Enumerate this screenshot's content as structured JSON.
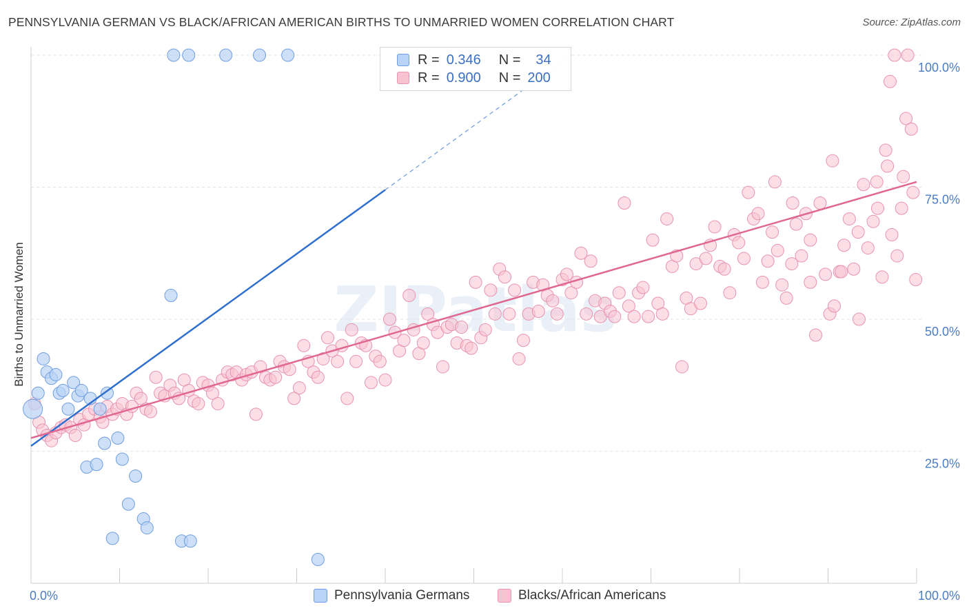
{
  "title": "PENNSYLVANIA GERMAN VS BLACK/AFRICAN AMERICAN BIRTHS TO UNMARRIED WOMEN CORRELATION CHART",
  "source": "Source: ZipAtlas.com",
  "watermark": "ZIPatlas",
  "legend": {
    "rows": [
      {
        "r_label": "R =",
        "r_value": "0.346",
        "n_label": "N =",
        "n_value": "34"
      },
      {
        "r_label": "R =",
        "r_value": "0.900",
        "n_label": "N =",
        "n_value": "200"
      }
    ]
  },
  "bottom_legend": [
    "Pennsylvania Germans",
    "Blacks/African Americans"
  ],
  "chart_data": {
    "type": "scatter",
    "title": "PENNSYLVANIA GERMAN VS BLACK/AFRICAN AMERICAN BIRTHS TO UNMARRIED WOMEN CORRELATION CHART",
    "xlabel": "",
    "ylabel": "Births to Unmarried Women",
    "xlim": [
      0,
      100
    ],
    "ylim": [
      0,
      100
    ],
    "x_tick_labels": [
      "0.0%",
      "100.0%"
    ],
    "y_tick_labels": [
      "25.0%",
      "50.0%",
      "75.0%",
      "100.0%"
    ],
    "y_ticks": [
      25,
      50,
      75,
      100
    ],
    "grid": true,
    "legend_position": "top-center",
    "colors": {
      "blue_fill": "#b8d3f5",
      "blue_stroke": "#6f9ee0",
      "blue_line": "#2f6fcf",
      "pink_fill": "#f7c2d2",
      "pink_stroke": "#e893b0",
      "pink_line": "#e0678f",
      "axis_text": "#4a7cc4",
      "grid": "#e3e3e3"
    },
    "series": [
      {
        "name": "Pennsylvania Germans",
        "r": 0.346,
        "n": 34,
        "trend": {
          "x0": 0,
          "y0": 26,
          "x1": 40,
          "y1": 74.5,
          "dash_to_x": 61,
          "dash_to_y": 100
        },
        "points": [
          [
            0.2,
            33
          ],
          [
            0.8,
            36
          ],
          [
            1.4,
            42.5
          ],
          [
            1.8,
            40
          ],
          [
            2.3,
            38.8
          ],
          [
            2.8,
            39.5
          ],
          [
            3.2,
            36
          ],
          [
            3.6,
            36.5
          ],
          [
            4.2,
            33
          ],
          [
            4.8,
            38
          ],
          [
            5.3,
            35.5
          ],
          [
            5.7,
            36.5
          ],
          [
            6.7,
            35
          ],
          [
            7.8,
            33
          ],
          [
            8.6,
            36
          ],
          [
            8.3,
            26.5
          ],
          [
            9.8,
            27.5
          ],
          [
            10.3,
            23.5
          ],
          [
            6.3,
            22
          ],
          [
            7.4,
            22.5
          ],
          [
            11.8,
            20.3
          ],
          [
            11.0,
            15
          ],
          [
            12.7,
            12.2
          ],
          [
            13.1,
            10.5
          ],
          [
            9.2,
            8.5
          ],
          [
            17.0,
            8
          ],
          [
            18.0,
            8
          ],
          [
            32.4,
            4.5
          ],
          [
            15.8,
            54.5
          ],
          [
            16.1,
            100
          ],
          [
            17.8,
            100
          ],
          [
            22.0,
            100
          ],
          [
            25.8,
            100
          ],
          [
            29.0,
            100
          ]
        ]
      },
      {
        "name": "Blacks/African Americans",
        "r": 0.9,
        "n": 200,
        "trend": {
          "x0": 0,
          "y0": 27.5,
          "x1": 100,
          "y1": 76
        },
        "points": [
          [
            0.4,
            34
          ],
          [
            0.9,
            30.5
          ],
          [
            1.3,
            29
          ],
          [
            1.8,
            28
          ],
          [
            2.3,
            27
          ],
          [
            2.8,
            28.5
          ],
          [
            3.4,
            29.5
          ],
          [
            3.9,
            30
          ],
          [
            4.5,
            29.5
          ],
          [
            5.0,
            28
          ],
          [
            5.5,
            31
          ],
          [
            6.0,
            30
          ],
          [
            6.5,
            32
          ],
          [
            7.2,
            33
          ],
          [
            7.8,
            31.5
          ],
          [
            8.1,
            30.5
          ],
          [
            8.6,
            33.5
          ],
          [
            9.2,
            32
          ],
          [
            9.7,
            33
          ],
          [
            10.3,
            34
          ],
          [
            10.8,
            32
          ],
          [
            11.4,
            33.5
          ],
          [
            11.9,
            36
          ],
          [
            12.4,
            35
          ],
          [
            13.0,
            33
          ],
          [
            13.5,
            32.5
          ],
          [
            14.1,
            39
          ],
          [
            14.6,
            36
          ],
          [
            15.1,
            35.5
          ],
          [
            15.7,
            37.5
          ],
          [
            16.2,
            36
          ],
          [
            16.7,
            35
          ],
          [
            17.3,
            38.5
          ],
          [
            17.8,
            36.5
          ],
          [
            18.4,
            34.5
          ],
          [
            18.9,
            34
          ],
          [
            19.4,
            38
          ],
          [
            20.0,
            37.5
          ],
          [
            20.5,
            36
          ],
          [
            21.1,
            34
          ],
          [
            21.6,
            38.5
          ],
          [
            22.2,
            40
          ],
          [
            22.7,
            39.5
          ],
          [
            23.2,
            40
          ],
          [
            23.8,
            38.5
          ],
          [
            24.3,
            39.5
          ],
          [
            24.9,
            40
          ],
          [
            25.4,
            32
          ],
          [
            25.9,
            41
          ],
          [
            26.5,
            39
          ],
          [
            27.0,
            38.5
          ],
          [
            27.6,
            39
          ],
          [
            28.1,
            42
          ],
          [
            28.6,
            41
          ],
          [
            29.2,
            40.5
          ],
          [
            29.7,
            35
          ],
          [
            30.3,
            37
          ],
          [
            30.8,
            45
          ],
          [
            31.3,
            42
          ],
          [
            31.9,
            40
          ],
          [
            32.4,
            39
          ],
          [
            33.0,
            42.5
          ],
          [
            33.5,
            46.5
          ],
          [
            34.0,
            44
          ],
          [
            34.6,
            42
          ],
          [
            35.1,
            45
          ],
          [
            35.7,
            35
          ],
          [
            36.2,
            48
          ],
          [
            36.7,
            42
          ],
          [
            37.3,
            45.5
          ],
          [
            37.8,
            45
          ],
          [
            38.4,
            38
          ],
          [
            38.9,
            43
          ],
          [
            39.4,
            42
          ],
          [
            40.0,
            38.5
          ],
          [
            40.5,
            50
          ],
          [
            41.1,
            47.5
          ],
          [
            41.6,
            44
          ],
          [
            42.1,
            46
          ],
          [
            42.7,
            54.5
          ],
          [
            43.2,
            48
          ],
          [
            43.8,
            43.5
          ],
          [
            44.3,
            45.5
          ],
          [
            44.8,
            51
          ],
          [
            45.4,
            49
          ],
          [
            45.9,
            47.5
          ],
          [
            46.5,
            41
          ],
          [
            47.0,
            48.5
          ],
          [
            47.5,
            49
          ],
          [
            48.1,
            45.5
          ],
          [
            48.6,
            48.5
          ],
          [
            49.2,
            45
          ],
          [
            49.7,
            44.5
          ],
          [
            50.2,
            57
          ],
          [
            50.8,
            46.5
          ],
          [
            51.3,
            48
          ],
          [
            51.9,
            55.5
          ],
          [
            52.4,
            51
          ],
          [
            52.9,
            59.5
          ],
          [
            53.5,
            58
          ],
          [
            54.0,
            51
          ],
          [
            54.6,
            55.5
          ],
          [
            55.1,
            42.5
          ],
          [
            55.6,
            46
          ],
          [
            56.2,
            51
          ],
          [
            56.7,
            57
          ],
          [
            57.3,
            51.5
          ],
          [
            57.8,
            56.5
          ],
          [
            58.3,
            54.5
          ],
          [
            58.9,
            53.5
          ],
          [
            59.4,
            51
          ],
          [
            60.0,
            57.5
          ],
          [
            60.5,
            58.5
          ],
          [
            61.0,
            55
          ],
          [
            61.6,
            57
          ],
          [
            62.1,
            62.5
          ],
          [
            62.7,
            51
          ],
          [
            63.2,
            61
          ],
          [
            63.7,
            53.5
          ],
          [
            64.3,
            50.5
          ],
          [
            64.8,
            53
          ],
          [
            65.4,
            51.5
          ],
          [
            65.9,
            50.5
          ],
          [
            66.4,
            55
          ],
          [
            67.0,
            72
          ],
          [
            67.5,
            52.5
          ],
          [
            68.1,
            50.5
          ],
          [
            68.6,
            55
          ],
          [
            69.1,
            56
          ],
          [
            69.7,
            50.5
          ],
          [
            70.2,
            65
          ],
          [
            70.8,
            53
          ],
          [
            71.3,
            51
          ],
          [
            71.8,
            69
          ],
          [
            72.4,
            60
          ],
          [
            72.9,
            62
          ],
          [
            73.5,
            41
          ],
          [
            74.0,
            54
          ],
          [
            74.5,
            52
          ],
          [
            75.1,
            60.5
          ],
          [
            75.6,
            53
          ],
          [
            76.2,
            61.5
          ],
          [
            76.7,
            64
          ],
          [
            77.2,
            67.5
          ],
          [
            77.8,
            60
          ],
          [
            78.3,
            59.5
          ],
          [
            78.9,
            55
          ],
          [
            79.4,
            66
          ],
          [
            79.9,
            64.5
          ],
          [
            80.5,
            61.5
          ],
          [
            81.0,
            74
          ],
          [
            81.6,
            69
          ],
          [
            82.1,
            70
          ],
          [
            82.6,
            57
          ],
          [
            83.2,
            61
          ],
          [
            83.7,
            66.5
          ],
          [
            84.3,
            63
          ],
          [
            84.8,
            56.5
          ],
          [
            85.3,
            54
          ],
          [
            85.9,
            60.5
          ],
          [
            86.4,
            68
          ],
          [
            87.0,
            62
          ],
          [
            87.5,
            70
          ],
          [
            88.0,
            57
          ],
          [
            88.6,
            47
          ],
          [
            89.1,
            72
          ],
          [
            89.7,
            58.5
          ],
          [
            90.2,
            51
          ],
          [
            90.7,
            52.5
          ],
          [
            91.3,
            59
          ],
          [
            91.8,
            64
          ],
          [
            92.4,
            69
          ],
          [
            92.9,
            59.5
          ],
          [
            93.4,
            66.5
          ],
          [
            94.0,
            75.5
          ],
          [
            94.5,
            63.5
          ],
          [
            95.1,
            68.5
          ],
          [
            95.6,
            71
          ],
          [
            96.1,
            58
          ],
          [
            96.7,
            79
          ],
          [
            97.2,
            66
          ],
          [
            97.8,
            62
          ],
          [
            98.3,
            71
          ],
          [
            98.8,
            88
          ],
          [
            99.4,
            86
          ],
          [
            99.9,
            57.5
          ],
          [
            84.0,
            76
          ],
          [
            86.0,
            72
          ],
          [
            88.0,
            65
          ],
          [
            90.5,
            80
          ],
          [
            91.5,
            59
          ],
          [
            93.5,
            50
          ],
          [
            95.5,
            76
          ],
          [
            96.5,
            82
          ],
          [
            97.0,
            95
          ],
          [
            97.5,
            100
          ],
          [
            98.5,
            77
          ],
          [
            99.0,
            100
          ],
          [
            99.6,
            74
          ]
        ]
      }
    ]
  }
}
